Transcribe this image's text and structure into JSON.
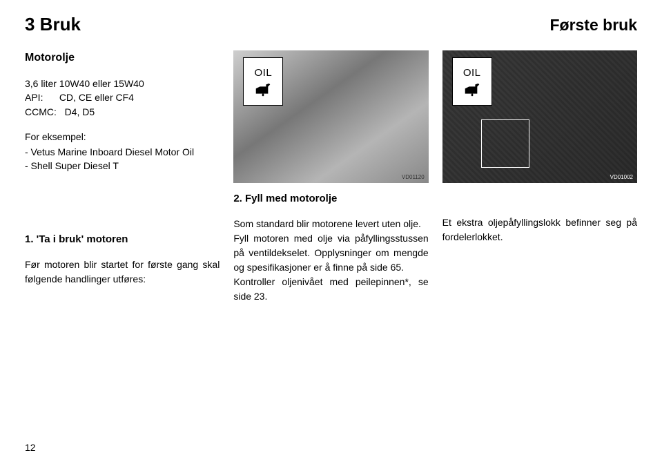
{
  "header": {
    "left": "3 Bruk",
    "right": "Første bruk"
  },
  "left_col": {
    "subtitle": "Motorolje",
    "spec_line1": "3,6 liter 10W40 eller 15W40",
    "spec_line2_label": "API:",
    "spec_line2_val": "CD, CE eller CF4",
    "spec_line3_label": "CCMC:",
    "spec_line3_val": "D4, D5",
    "example_label": "For eksempel:",
    "example_item1": "-  Vetus Marine Inboard Diesel Motor Oil",
    "example_item2": "-  Shell Super Diesel T",
    "heading": "1. 'Ta i bruk' motoren",
    "body": "Før motoren blir startet for første gang skal følgende handlinger utføres:"
  },
  "center_col": {
    "oil_label": "OIL",
    "img_code": "VD01120",
    "heading": "2. Fyll med motorolje",
    "body": "Som standard blir motorene levert uten olje.\nFyll motoren med olje via påfyllingsstussen på ventildekselet. Opplysninger om mengde og spesifikasjoner er å finne på side 65.\nKontroller oljenivået med peilepinnen*, se side 23."
  },
  "right_col": {
    "oil_label": "OIL",
    "img_code": "VD01002",
    "body": "Et ekstra oljepåfyllingslokk befinner seg på fordelerlokket."
  },
  "page_number": "12",
  "colors": {
    "text": "#000000",
    "background": "#ffffff",
    "border": "#000000"
  }
}
